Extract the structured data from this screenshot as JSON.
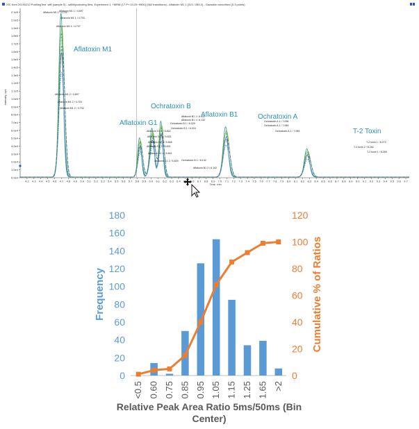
{
  "chart_data": [
    {
      "type": "line",
      "title": "XIC from 20190212 PosNegTest .wiff (sample 5) - s#6Mycotoxing 5ms, Experiment 1, +MRM (17 P+:10.25~9900) (562 transitions) - Aflatoxin M1 1 (313 / 285.2) - Gaussian smoothed (0.3 points)",
      "xlabel": "Time, min",
      "ylabel": "Intensity, cps",
      "xlim": [
        4.1,
        9.75
      ],
      "ylim": [
        0,
        215000.0
      ],
      "x_ticks": [
        "4.2",
        "4.3",
        "4.4",
        "4.5",
        "4.6",
        "4.7",
        "4.8",
        "4.9",
        "5.0",
        "5.1",
        "5.2",
        "5.3",
        "5.4",
        "5.5",
        "5.6",
        "5.7",
        "5.8",
        "5.9",
        "6.0",
        "6.1",
        "6.2",
        "6.3",
        "6.4",
        "6.5",
        "6.6",
        "6.7",
        "6.8",
        "6.9",
        "7.0",
        "7.1",
        "7.2",
        "7.3",
        "7.4",
        "7.5",
        "7.6",
        "7.7",
        "7.8",
        "7.9",
        "8.0",
        "8.1",
        "8.2",
        "8.3",
        "8.4",
        "8.5",
        "8.6",
        "8.7",
        "8.8",
        "8.9",
        "9.0",
        "9.1",
        "9.2",
        "9.3",
        "9.4",
        "9.5",
        "9.6",
        "9.7"
      ],
      "y_ticks": [
        "0.0e0",
        "1.0e4",
        "2.0e4",
        "3.0e4",
        "4.0e4",
        "5.0e4",
        "6.0e4",
        "7.0e4",
        "8.0e4",
        "9.0e4",
        "1.0e5",
        "1.1e5",
        "1.2e5",
        "1.3e5",
        "1.4e5",
        "1.5e5",
        "1.6e5",
        "1.7e5",
        "1.8e5",
        "1.9e5",
        "2.0e5",
        "2.1e5"
      ],
      "marker_time": 5.79,
      "cursor": "drag-cursor",
      "peaks": [
        {
          "name": "Aflatoxin M1",
          "time": 4.7,
          "height": 208000.0,
          "width": 0.035
        },
        {
          "name": "Aflatoxin G1",
          "time": 5.84,
          "height": 50000.0,
          "width": 0.03
        },
        {
          "name": "Ochratoxin B",
          "time": 6.02,
          "height": 62000.0,
          "width": 0.035
        },
        {
          "name": "Aflatoxin B1",
          "time": 6.15,
          "height": 71000.0,
          "width": 0.03
        },
        {
          "name": "Ochratoxin A",
          "time": 7.09,
          "height": 64000.0,
          "width": 0.04
        },
        {
          "name": "T-2 Toxin",
          "time": 8.27,
          "height": 36000.0,
          "width": 0.04
        }
      ],
      "annotations": [
        "Aflatoxin M1 1 / 4.702",
        "Aflatoxin M1 1 / 4.697",
        "Aflatoxin M1 1 / 4.703",
        "Aflatoxin M1 1 / 4.707",
        "Aflatoxin M1 2 / 4.697",
        "Aflatoxin M1 2 / 4.703",
        "Aflatoxin M1 2 / 4.702",
        "Aflatoxin G1 1 / 5.842",
        "Aflatoxin G1 1 / 5.831",
        "Aflatoxin G1 2 / 5.848",
        "Aflatoxin G1 2 / 5.831",
        "Aflatoxin G1 2 / 5.841",
        "Aflatoxin G1 2 / 5.829",
        "Ochratoxin B 1 / 6.029",
        "Ochratoxin B 1 / 6.024",
        "Ochratoxin B 1 / 6.142",
        "Aflatoxin B1 1 / 6.142",
        "Aflatoxin B1 1 / 6.142",
        "Aflatoxin B1 2 / 6.142",
        "Ochratoxin A 1 / 7.096",
        "Ochratoxin A 1 / 7.089",
        "Ochratoxin A 1 / 7.089",
        "T-2 toxin 1 / 8.272",
        "T-2 toxin 2 / 8.262",
        "T-2 toxin 1 / 8.269"
      ]
    },
    {
      "type": "bar",
      "categories": [
        "<0.5",
        "0.60",
        "0.75",
        "0.85",
        "0.95",
        "1.05",
        "1.15",
        "1.25",
        "1.65",
        ">2"
      ],
      "series": [
        {
          "name": "Frequency",
          "type": "bar",
          "axis": "left",
          "values": [
            0,
            14,
            2,
            50,
            126,
            153,
            85,
            34,
            39,
            8
          ]
        },
        {
          "name": "Cumulative % of Ratios",
          "type": "line",
          "axis": "right",
          "values": [
            1,
            4,
            5,
            15,
            40,
            68,
            85,
            92,
            99,
            100
          ]
        }
      ],
      "xlabel": "Relative Peak Area Ratio 5ms/50ms (Bin Center)",
      "ylabel": "Frequency",
      "y2label": "Cumulative % of Ratios",
      "ylim": [
        0,
        180
      ],
      "y2lim": [
        0,
        120
      ],
      "yticks": [
        0,
        20,
        40,
        60,
        80,
        100,
        120,
        140,
        160,
        180
      ],
      "y2ticks": [
        0,
        20,
        40,
        60,
        80,
        100,
        120
      ],
      "colors": {
        "bar": "#5b9bd5",
        "line": "#ed7d31"
      }
    }
  ]
}
